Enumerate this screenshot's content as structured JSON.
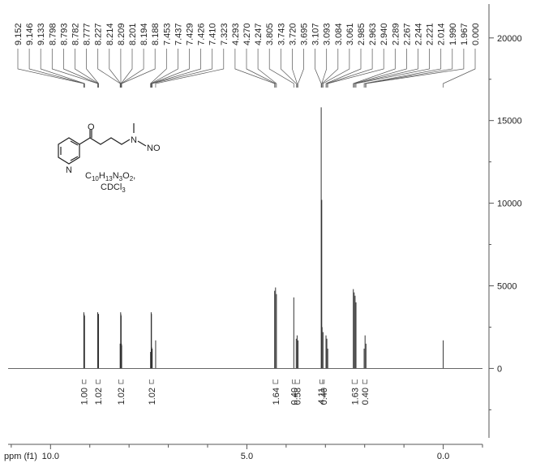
{
  "chart_data": {
    "type": "nmr",
    "x_label": "ppm (f1)",
    "xlim": [
      11.08,
      -1.0
    ],
    "xticks": [
      {
        "value": 10,
        "label": "10.0"
      },
      {
        "value": 5,
        "label": "5.0"
      },
      {
        "value": 0,
        "label": "0.0"
      }
    ],
    "xticks_minor": [
      11,
      9,
      8,
      7,
      6,
      4,
      3,
      2,
      1,
      -1
    ],
    "ylim": [
      -4200,
      22050
    ],
    "yticks": [
      0,
      5000,
      10000,
      15000,
      20000
    ],
    "yticks_minor": [
      -2500,
      2500,
      7500,
      12500,
      17500
    ],
    "color": "#333333",
    "peaks": {
      "x": [
        9.152,
        9.146,
        9.133,
        8.798,
        8.793,
        8.782,
        8.777,
        8.227,
        8.214,
        8.209,
        8.201,
        8.194,
        8.188,
        7.453,
        7.437,
        7.429,
        7.426,
        7.41,
        7.323,
        4.293,
        4.27,
        4.247,
        3.805,
        3.743,
        3.72,
        3.695,
        3.107,
        3.093,
        3.084,
        3.061,
        2.985,
        2.963,
        2.94,
        2.289,
        2.267,
        2.244,
        2.221,
        2.014,
        1.99,
        1.967,
        0.0
      ],
      "x_labels": [
        "9.152",
        "9.146",
        "9.133",
        "8.798",
        "8.793",
        "8.782",
        "8.777",
        "8.227",
        "8.214",
        "8.209",
        "8.201",
        "8.194",
        "8.188",
        "7.453",
        "7.437",
        "7.429",
        "7.426",
        "7.410",
        "7.323",
        "4.293",
        "4.270",
        "4.247",
        "3.805",
        "3.743",
        "3.720",
        "3.695",
        "3.107",
        "3.093",
        "3.084",
        "3.061",
        "2.985",
        "2.963",
        "2.940",
        "2.289",
        "2.267",
        "2.244",
        "2.221",
        "2.014",
        "1.990",
        "1.967",
        "0.000"
      ],
      "values": [
        3400,
        3300,
        3200,
        3400,
        3300,
        3200,
        3300,
        1500,
        3400,
        3300,
        3200,
        1500,
        1400,
        1000,
        3400,
        3300,
        1300,
        1200,
        1700,
        4700,
        4900,
        4500,
        4300,
        1800,
        2000,
        1700,
        15800,
        10200,
        2500,
        2200,
        2000,
        1800,
        1200,
        4800,
        4600,
        4400,
        4000,
        1200,
        2000,
        1500,
        1700
      ]
    },
    "integrals": {
      "ranges": [
        [
          9.19,
          9.1
        ],
        [
          8.84,
          8.74
        ],
        [
          8.26,
          8.15
        ],
        [
          7.48,
          7.38
        ],
        [
          4.33,
          4.21
        ],
        [
          3.84,
          3.77
        ],
        [
          3.77,
          3.66
        ],
        [
          3.14,
          3.07
        ],
        [
          3.07,
          3.03
        ],
        [
          2.32,
          2.19
        ],
        [
          2.05,
          1.94
        ]
      ],
      "values": [
        1.0,
        1.02,
        1.02,
        1.02,
        1.64,
        0.4,
        0.58,
        4.11,
        0.4,
        1.63,
        0.4
      ],
      "value_labels": [
        "1.00",
        "1.02",
        "1.02",
        "1.02",
        "1.64",
        "0.40",
        "0.58",
        "4.11",
        "0.40",
        "1.63",
        "0.40"
      ]
    }
  },
  "structure": {
    "atoms": [
      "O",
      "N",
      "N",
      "NO"
    ],
    "formula": [
      "C",
      "10",
      "H",
      "13",
      "N",
      "3",
      "O",
      "2",
      ","
    ],
    "solvent": [
      "CDCl",
      "3"
    ]
  }
}
